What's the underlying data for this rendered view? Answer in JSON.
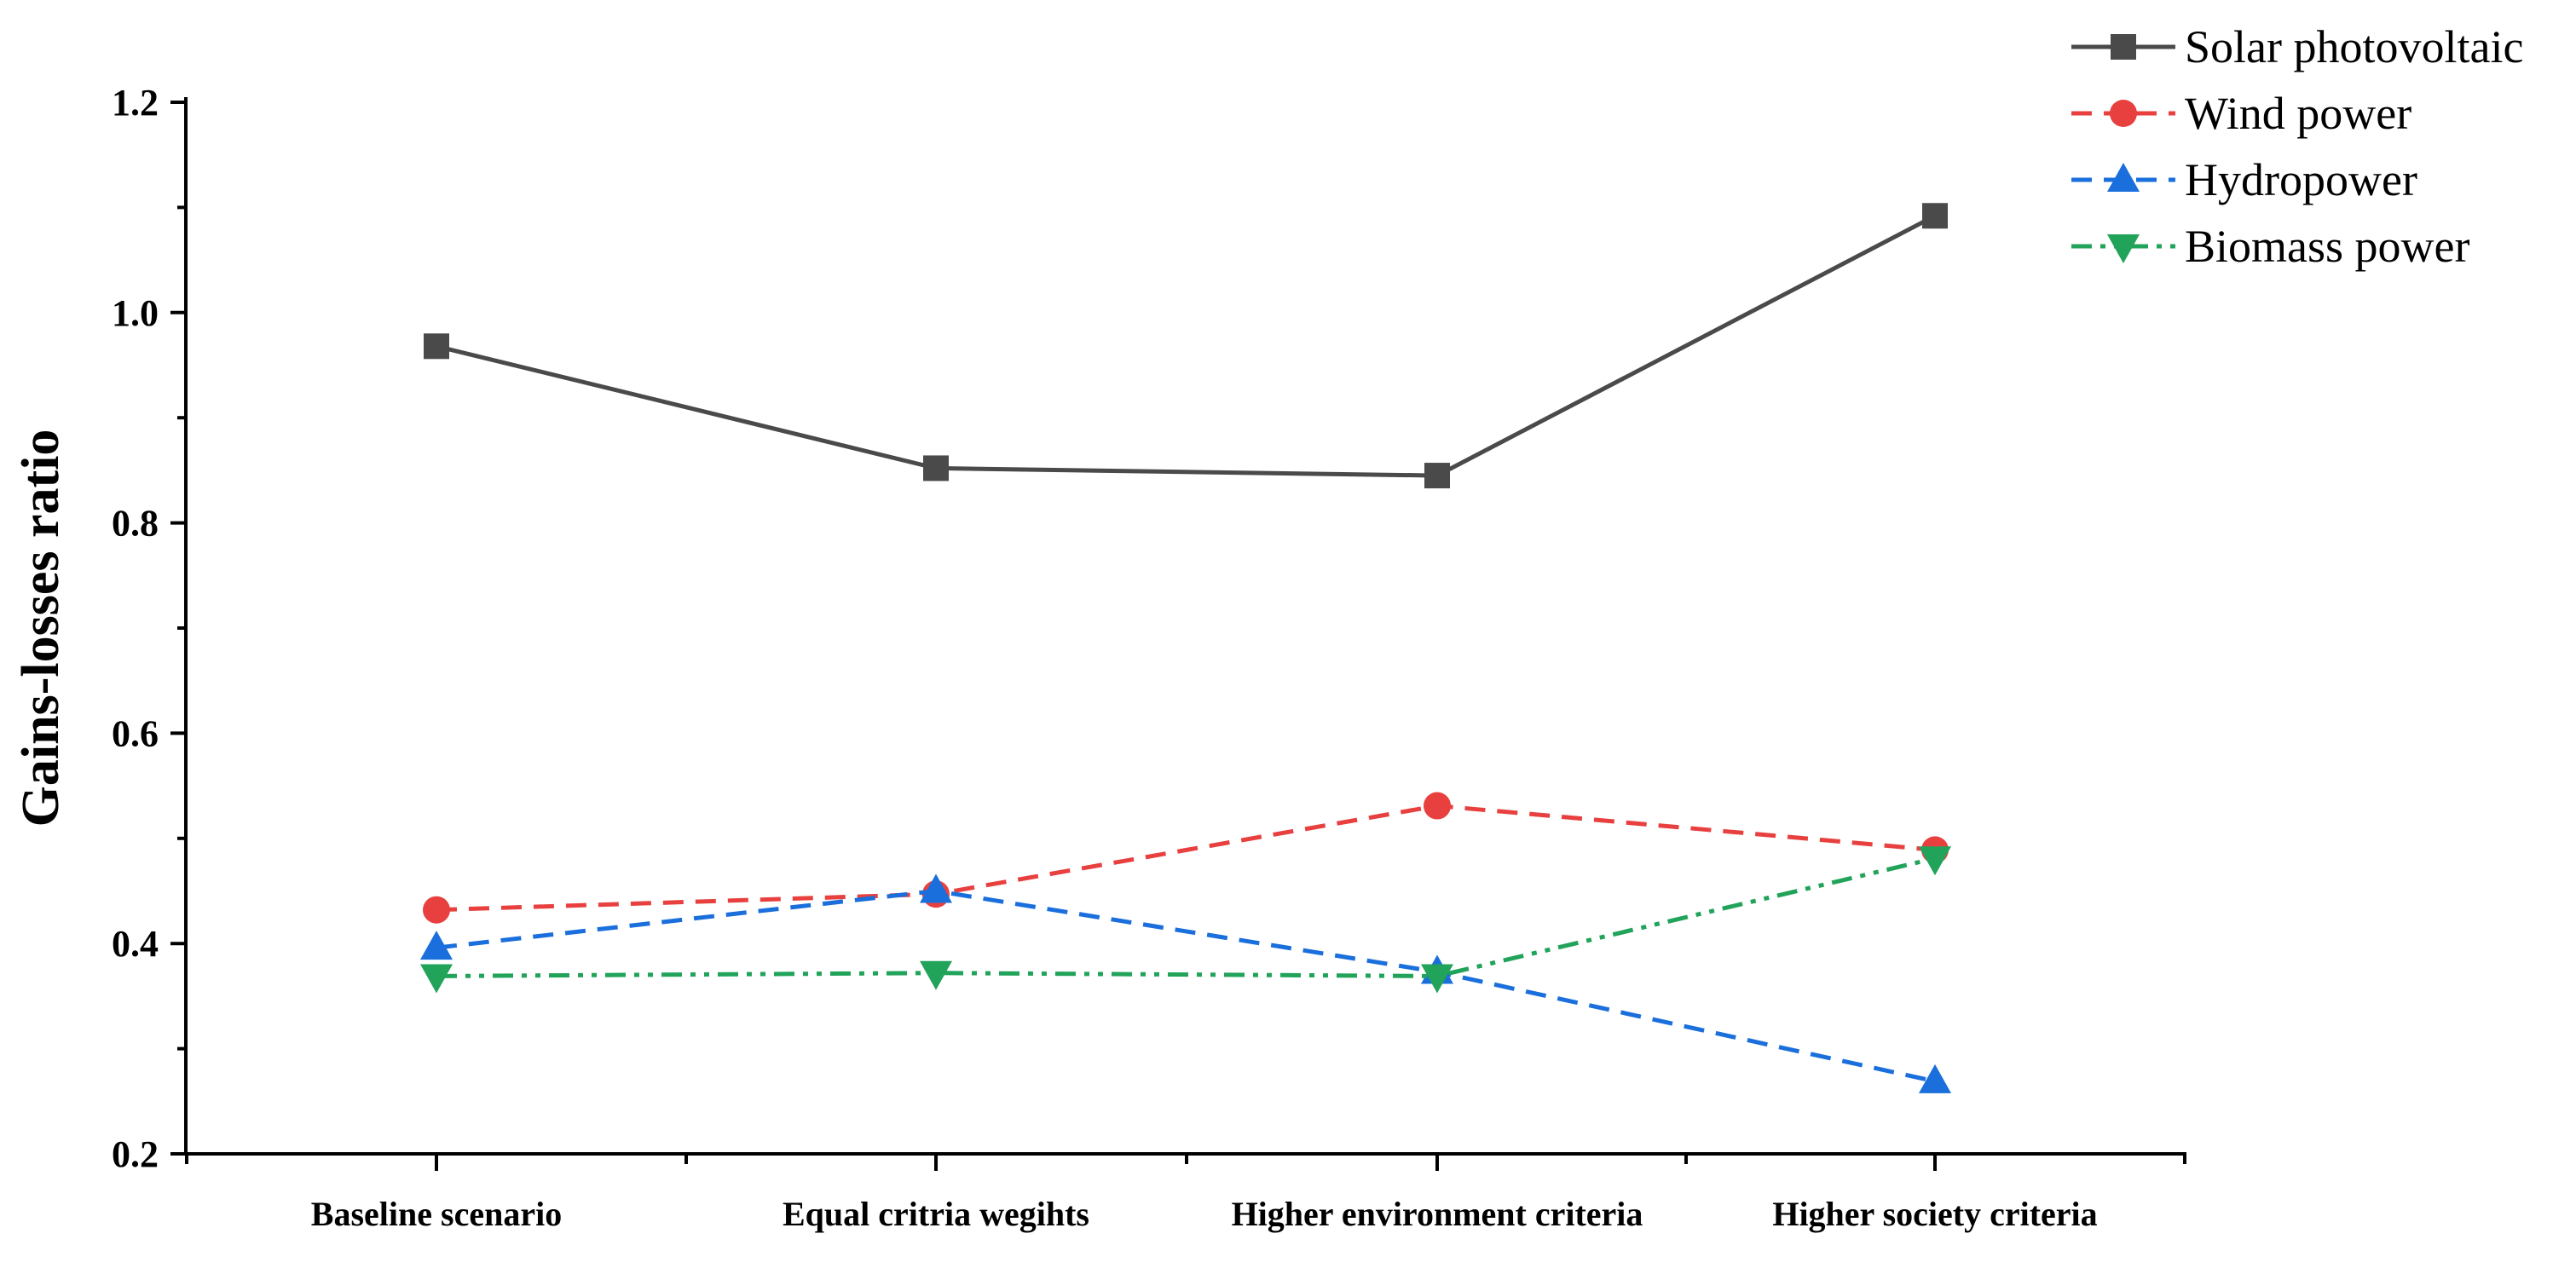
{
  "chart_data": {
    "type": "line",
    "title": "",
    "xlabel": "",
    "ylabel": "Gains-losses ratio",
    "ylim": [
      0.2,
      1.2
    ],
    "yticks": [
      "0.2",
      "0.4",
      "0.6",
      "0.8",
      "1.0",
      "1.2"
    ],
    "categories": [
      "Baseline scenario",
      "Equal critria wegihts",
      "Higher environment criteria",
      "Higher society criteria"
    ],
    "legend_position": "top-right",
    "series": [
      {
        "name": "Solar photovoltaic",
        "values": [
          0.968,
          0.852,
          0.845,
          1.092
        ],
        "color": "#4a4a4a",
        "marker": "square",
        "line": "solid"
      },
      {
        "name": "Wind power",
        "values": [
          0.432,
          0.447,
          0.531,
          0.489
        ],
        "color": "#e8403f",
        "marker": "circle",
        "line": "dash"
      },
      {
        "name": "Hydropower",
        "values": [
          0.396,
          0.45,
          0.373,
          0.269
        ],
        "color": "#1a6fdc",
        "marker": "triangle-up",
        "line": "dash"
      },
      {
        "name": "Biomass power",
        "values": [
          0.369,
          0.372,
          0.369,
          0.481
        ],
        "color": "#21a35a",
        "marker": "triangle-down",
        "line": "dash-dot-dot"
      }
    ]
  }
}
